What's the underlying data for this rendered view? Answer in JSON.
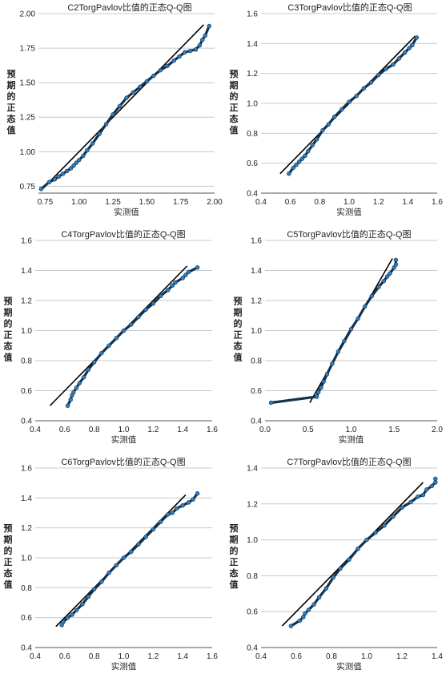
{
  "xlabel": "实测值",
  "ylabel_chars": [
    "预",
    "期",
    "的",
    "正",
    "态",
    "值"
  ],
  "colors": {
    "point_fill": "#2f7fc0",
    "point_stroke": "#12324f",
    "line": "#000000",
    "grid": "#c8c8c8"
  },
  "chart_data": [
    {
      "type": "scatter",
      "title": "C2TorgPavlov比值的正态Q-Q图",
      "xlim": [
        0.7,
        2.0
      ],
      "ylim": [
        0.7,
        2.0
      ],
      "xticks": [
        "0.75",
        "1.00",
        "1.25",
        "1.50",
        "1.75",
        "2.00"
      ],
      "yticks": [
        "0.75",
        "1.00",
        "1.25",
        "1.50",
        "1.75",
        "2.00"
      ],
      "grid": true,
      "reference_line": [
        [
          0.73,
          0.73
        ],
        [
          1.92,
          1.92
        ]
      ],
      "points": [
        [
          0.72,
          0.73
        ],
        [
          0.78,
          0.78
        ],
        [
          0.82,
          0.8
        ],
        [
          0.85,
          0.82
        ],
        [
          0.88,
          0.84
        ],
        [
          0.91,
          0.86
        ],
        [
          0.94,
          0.88
        ],
        [
          0.96,
          0.9
        ],
        [
          0.98,
          0.92
        ],
        [
          1.0,
          0.94
        ],
        [
          1.03,
          0.97
        ],
        [
          1.06,
          1.01
        ],
        [
          1.1,
          1.06
        ],
        [
          1.15,
          1.13
        ],
        [
          1.2,
          1.2
        ],
        [
          1.25,
          1.27
        ],
        [
          1.3,
          1.33
        ],
        [
          1.35,
          1.39
        ],
        [
          1.4,
          1.43
        ],
        [
          1.45,
          1.47
        ],
        [
          1.5,
          1.51
        ],
        [
          1.55,
          1.55
        ],
        [
          1.6,
          1.59
        ],
        [
          1.65,
          1.62
        ],
        [
          1.7,
          1.66
        ],
        [
          1.74,
          1.69
        ],
        [
          1.78,
          1.72
        ],
        [
          1.82,
          1.73
        ],
        [
          1.86,
          1.74
        ],
        [
          1.89,
          1.77
        ],
        [
          1.91,
          1.81
        ],
        [
          1.93,
          1.84
        ],
        [
          1.96,
          1.91
        ]
      ]
    },
    {
      "type": "scatter",
      "title": "C3TorgPavlov比值的正态Q-Q图",
      "xlim": [
        0.4,
        1.6
      ],
      "ylim": [
        0.4,
        1.6
      ],
      "xticks": [
        "0.4",
        "0.6",
        "0.8",
        "1.0",
        "1.2",
        "1.4",
        "1.6"
      ],
      "yticks": [
        "0.4",
        "0.6",
        "0.8",
        "1.0",
        "1.2",
        "1.4",
        "1.6"
      ],
      "grid": true,
      "reference_line": [
        [
          0.53,
          0.53
        ],
        [
          1.45,
          1.45
        ]
      ],
      "points": [
        [
          0.59,
          0.53
        ],
        [
          0.62,
          0.57
        ],
        [
          0.64,
          0.59
        ],
        [
          0.66,
          0.61
        ],
        [
          0.68,
          0.63
        ],
        [
          0.7,
          0.65
        ],
        [
          0.72,
          0.68
        ],
        [
          0.75,
          0.72
        ],
        [
          0.78,
          0.76
        ],
        [
          0.82,
          0.82
        ],
        [
          0.86,
          0.86
        ],
        [
          0.9,
          0.91
        ],
        [
          0.95,
          0.96
        ],
        [
          1.0,
          1.01
        ],
        [
          1.05,
          1.05
        ],
        [
          1.1,
          1.1
        ],
        [
          1.15,
          1.14
        ],
        [
          1.2,
          1.19
        ],
        [
          1.25,
          1.23
        ],
        [
          1.3,
          1.26
        ],
        [
          1.34,
          1.3
        ],
        [
          1.38,
          1.34
        ],
        [
          1.41,
          1.37
        ],
        [
          1.43,
          1.39
        ],
        [
          1.46,
          1.44
        ]
      ]
    },
    {
      "type": "scatter",
      "title": "C4TorgPavlov比值的正态Q-Q图",
      "xlim": [
        0.4,
        1.6
      ],
      "ylim": [
        0.4,
        1.6
      ],
      "xticks": [
        "0.4",
        "0.6",
        "0.8",
        "1.0",
        "1.2",
        "1.4",
        "1.6"
      ],
      "yticks": [
        "0.4",
        "0.6",
        "0.8",
        "1.0",
        "1.2",
        "1.4",
        "1.6"
      ],
      "grid": true,
      "reference_line": [
        [
          0.5,
          0.5
        ],
        [
          1.43,
          1.43
        ]
      ],
      "points": [
        [
          0.62,
          0.5
        ],
        [
          0.64,
          0.54
        ],
        [
          0.65,
          0.57
        ],
        [
          0.66,
          0.59
        ],
        [
          0.68,
          0.62
        ],
        [
          0.7,
          0.65
        ],
        [
          0.73,
          0.69
        ],
        [
          0.76,
          0.74
        ],
        [
          0.8,
          0.79
        ],
        [
          0.85,
          0.85
        ],
        [
          0.9,
          0.9
        ],
        [
          0.95,
          0.95
        ],
        [
          1.0,
          1.0
        ],
        [
          1.05,
          1.04
        ],
        [
          1.1,
          1.09
        ],
        [
          1.15,
          1.14
        ],
        [
          1.2,
          1.18
        ],
        [
          1.25,
          1.23
        ],
        [
          1.3,
          1.27
        ],
        [
          1.33,
          1.3
        ],
        [
          1.35,
          1.32
        ],
        [
          1.4,
          1.35
        ],
        [
          1.42,
          1.37
        ],
        [
          1.44,
          1.39
        ],
        [
          1.5,
          1.42
        ]
      ]
    },
    {
      "type": "scatter",
      "title": "C5TorgPavlov比值的正态Q-Q图",
      "xlim": [
        0.0,
        2.0
      ],
      "ylim": [
        0.4,
        1.6
      ],
      "xticks": [
        "0.0",
        "0.5",
        "1.0",
        "1.5",
        "2.0"
      ],
      "yticks": [
        "0.4",
        "0.6",
        "0.8",
        "1.0",
        "1.2",
        "1.4",
        "1.6"
      ],
      "grid": true,
      "reference_line": [
        [
          0.52,
          0.52
        ],
        [
          1.48,
          1.48
        ]
      ],
      "points": [
        [
          0.07,
          0.52
        ],
        [
          0.6,
          0.56
        ],
        [
          0.62,
          0.59
        ],
        [
          0.65,
          0.62
        ],
        [
          0.68,
          0.66
        ],
        [
          0.72,
          0.71
        ],
        [
          0.78,
          0.78
        ],
        [
          0.85,
          0.86
        ],
        [
          0.92,
          0.93
        ],
        [
          1.0,
          1.01
        ],
        [
          1.08,
          1.08
        ],
        [
          1.16,
          1.16
        ],
        [
          1.24,
          1.23
        ],
        [
          1.32,
          1.29
        ],
        [
          1.38,
          1.33
        ],
        [
          1.42,
          1.36
        ],
        [
          1.45,
          1.38
        ],
        [
          1.5,
          1.42
        ],
        [
          1.52,
          1.44
        ],
        [
          1.52,
          1.47
        ]
      ]
    },
    {
      "type": "scatter",
      "title": "C6TorgPavlov比值的正态Q-Q图",
      "xlim": [
        0.4,
        1.6
      ],
      "ylim": [
        0.4,
        1.6
      ],
      "xticks": [
        "0.4",
        "0.6",
        "0.8",
        "1.0",
        "1.2",
        "1.4",
        "1.6"
      ],
      "yticks": [
        "0.4",
        "0.6",
        "0.8",
        "1.0",
        "1.2",
        "1.4",
        "1.6"
      ],
      "grid": true,
      "reference_line": [
        [
          0.54,
          0.54
        ],
        [
          1.42,
          1.42
        ]
      ],
      "points": [
        [
          0.58,
          0.55
        ],
        [
          0.59,
          0.57
        ],
        [
          0.62,
          0.6
        ],
        [
          0.65,
          0.62
        ],
        [
          0.68,
          0.65
        ],
        [
          0.72,
          0.69
        ],
        [
          0.76,
          0.74
        ],
        [
          0.8,
          0.79
        ],
        [
          0.85,
          0.84
        ],
        [
          0.9,
          0.9
        ],
        [
          0.95,
          0.95
        ],
        [
          1.0,
          1.0
        ],
        [
          1.05,
          1.04
        ],
        [
          1.1,
          1.09
        ],
        [
          1.15,
          1.14
        ],
        [
          1.2,
          1.19
        ],
        [
          1.25,
          1.24
        ],
        [
          1.3,
          1.29
        ],
        [
          1.33,
          1.3
        ],
        [
          1.36,
          1.33
        ],
        [
          1.4,
          1.35
        ],
        [
          1.44,
          1.37
        ],
        [
          1.47,
          1.39
        ],
        [
          1.5,
          1.43
        ]
      ]
    },
    {
      "type": "scatter",
      "title": "C7TorgPavlov比值的正态Q-Q图",
      "xlim": [
        0.4,
        1.4
      ],
      "ylim": [
        0.4,
        1.4
      ],
      "xticks": [
        "0.4",
        "0.6",
        "0.8",
        "1.0",
        "1.2",
        "1.4"
      ],
      "yticks": [
        "0.4",
        "0.6",
        "0.8",
        "1.0",
        "1.2",
        "1.4"
      ],
      "grid": true,
      "reference_line": [
        [
          0.52,
          0.52
        ],
        [
          1.32,
          1.32
        ]
      ],
      "points": [
        [
          0.57,
          0.52
        ],
        [
          0.62,
          0.55
        ],
        [
          0.64,
          0.57
        ],
        [
          0.65,
          0.59
        ],
        [
          0.67,
          0.61
        ],
        [
          0.7,
          0.64
        ],
        [
          0.73,
          0.68
        ],
        [
          0.77,
          0.73
        ],
        [
          0.81,
          0.79
        ],
        [
          0.85,
          0.84
        ],
        [
          0.9,
          0.89
        ],
        [
          0.95,
          0.95
        ],
        [
          1.0,
          1.0
        ],
        [
          1.05,
          1.04
        ],
        [
          1.1,
          1.08
        ],
        [
          1.15,
          1.13
        ],
        [
          1.2,
          1.18
        ],
        [
          1.25,
          1.21
        ],
        [
          1.29,
          1.24
        ],
        [
          1.32,
          1.25
        ],
        [
          1.34,
          1.28
        ],
        [
          1.37,
          1.3
        ],
        [
          1.39,
          1.32
        ],
        [
          1.39,
          1.34
        ]
      ]
    }
  ]
}
